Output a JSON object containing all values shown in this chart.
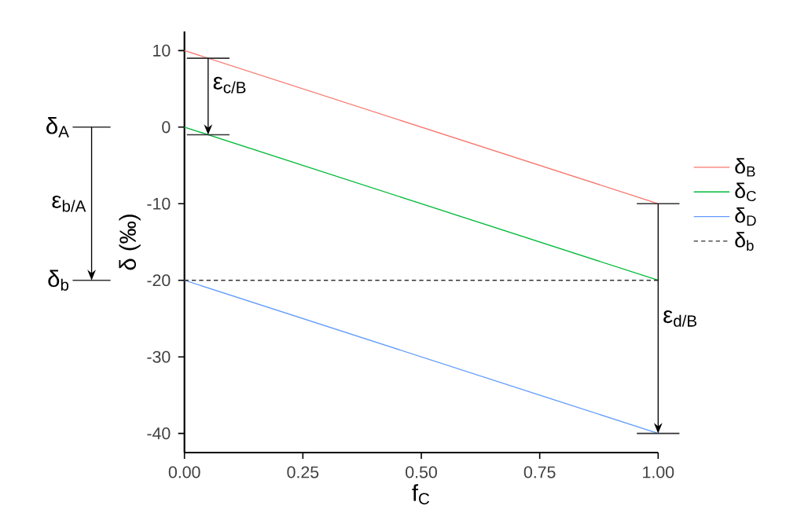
{
  "chart_data": {
    "type": "line",
    "xlabel": "f$_{C}$",
    "ylabel": "δ (‰)",
    "xlim": [
      0,
      1
    ],
    "xticks": [
      {
        "value": 0,
        "label": "0.00"
      },
      {
        "value": 0.25,
        "label": "0.25"
      },
      {
        "value": 0.5,
        "label": "0.50"
      },
      {
        "value": 0.75,
        "label": "0.75"
      },
      {
        "value": 1,
        "label": "1.00"
      }
    ],
    "ylim": [
      -42.5,
      12.5
    ],
    "yticks": [
      -40,
      -30,
      -20,
      -10,
      0,
      10
    ],
    "x": [
      0,
      1
    ],
    "series": [
      {
        "name": "δ$_{B}$",
        "color": "#f8766d",
        "values": [
          10,
          -10
        ]
      },
      {
        "name": "δ$_{C}$",
        "color": "#00ba38",
        "values": [
          0,
          -20
        ]
      },
      {
        "name": "δ$_{D}$",
        "color": "#619cff",
        "values": [
          -20,
          -40
        ]
      },
      {
        "name": "δ$_{b}$",
        "color": "#333333",
        "values": [
          -20,
          -20
        ],
        "line_style": "dashed"
      }
    ],
    "annotations": [
      "δ$_{A}$",
      "δ$_{b}$",
      "ε$_{b/A}$",
      {
        "text": "ε$_{c/B}$",
        "x": 0.05,
        "y": -1
      },
      "ε$_{d/B}$"
    ],
    "legend": "right",
    "grid": false,
    "marker": "none"
  }
}
